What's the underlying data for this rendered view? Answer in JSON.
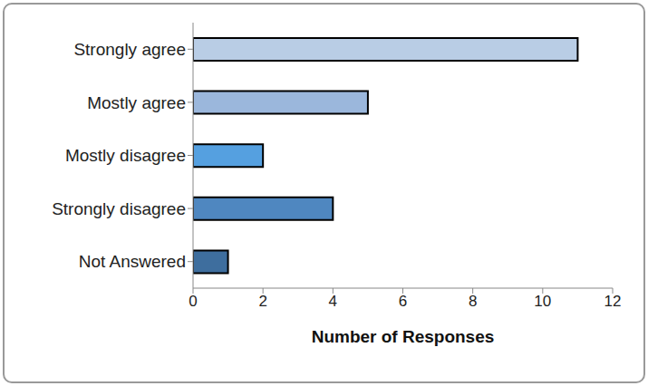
{
  "chart_data": {
    "type": "bar",
    "orientation": "horizontal",
    "categories": [
      "Strongly agree",
      "Mostly agree",
      "Mostly disagree",
      "Strongly disagree",
      "Not Answered"
    ],
    "values": [
      11,
      5,
      2,
      4,
      1
    ],
    "colors": [
      "#b9cde5",
      "#9bb7dc",
      "#55a0e0",
      "#4f87c0",
      "#3e6e9e"
    ],
    "xlabel": "Number of Responses",
    "xlim": [
      0,
      12
    ],
    "xticks": [
      0,
      2,
      4,
      6,
      8,
      10,
      12
    ],
    "grid": false
  }
}
